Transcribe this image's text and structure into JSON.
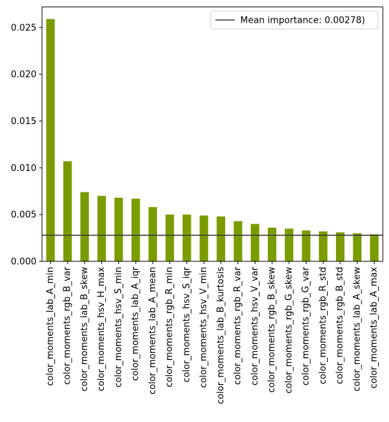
{
  "chart_data": {
    "type": "bar",
    "title": "",
    "xlabel": "",
    "ylabel": "",
    "bar_color": "#7a9c00",
    "ylim": [
      0,
      0.0272
    ],
    "yticks": [
      "0.000",
      "0.005",
      "0.010",
      "0.015",
      "0.020",
      "0.025"
    ],
    "ytick_values": [
      0,
      0.005,
      0.01,
      0.015,
      0.02,
      0.025
    ],
    "categories": [
      "color_moments_lab_A_min",
      "color_moments_rgb_B_var",
      "color_moments_lab_B_skew",
      "color_moments_hsv_H_max",
      "color_moments_hsv_S_min",
      "color_moments_lab_A_iqr",
      "color_moments_lab_A_mean",
      "color_moments_rgb_R_min",
      "color_moments_hsv_S_iqr",
      "color_moments_hsv_V_min",
      "color_moments_lab_B_kurtosis",
      "color_moments_rgb_R_var",
      "color_moments_hsv_V_var",
      "color_moments_rgb_B_skew",
      "color_moments_rgb_G_skew",
      "color_moments_rgb_G_var",
      "color_moments_rgb_R_std",
      "color_moments_rgb_B_std",
      "color_moments_lab_A_skew",
      "color_moments_lab_A_max"
    ],
    "values": [
      0.0259,
      0.0107,
      0.0074,
      0.007,
      0.0068,
      0.0067,
      0.0058,
      0.005,
      0.005,
      0.0049,
      0.0048,
      0.0043,
      0.004,
      0.0036,
      0.0035,
      0.0033,
      0.0032,
      0.0031,
      0.003,
      0.0029
    ],
    "mean_line": {
      "value": 0.00278,
      "color": "#3a3a3a",
      "label": "Mean importance: 0.00278)"
    },
    "legend_position": "top-right",
    "grid": false
  }
}
